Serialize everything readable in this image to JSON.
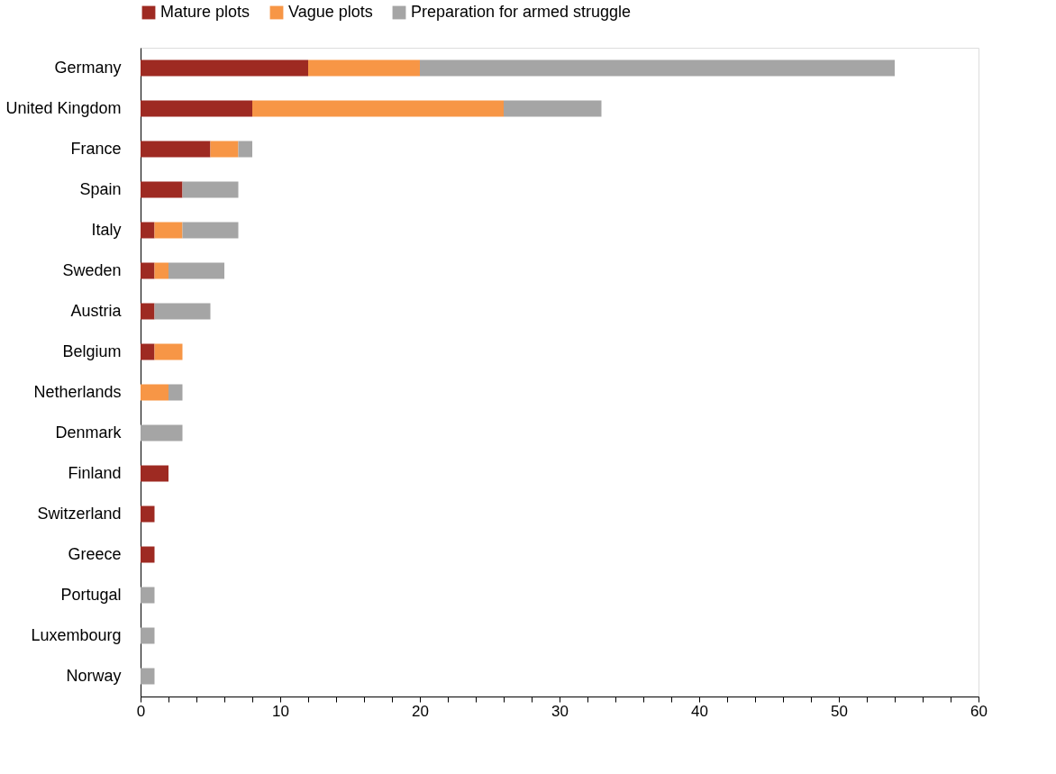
{
  "chart_data": {
    "type": "bar",
    "orientation": "horizontal",
    "stacked": true,
    "legend": "top",
    "grid": false,
    "categories": [
      "Germany",
      "United Kingdom",
      "France",
      "Spain",
      "Italy",
      "Sweden",
      "Austria",
      "Belgium",
      "Netherlands",
      "Denmark",
      "Finland",
      "Switzerland",
      "Greece",
      "Portugal",
      "Luxembourg",
      "Norway"
    ],
    "series": [
      {
        "name": "Mature plots",
        "color": "#9e2a22",
        "values": [
          12,
          8,
          5,
          3,
          1,
          1,
          1,
          1,
          0,
          0,
          2,
          1,
          1,
          0,
          0,
          0
        ]
      },
      {
        "name": "Vague plots",
        "color": "#f79646",
        "values": [
          8,
          18,
          2,
          0,
          2,
          1,
          0,
          2,
          2,
          0,
          0,
          0,
          0,
          0,
          0,
          0
        ]
      },
      {
        "name": "Preparation for armed struggle",
        "color": "#a5a5a5",
        "values": [
          34,
          7,
          1,
          4,
          4,
          4,
          4,
          0,
          1,
          3,
          0,
          0,
          0,
          1,
          1,
          1
        ]
      }
    ],
    "xlim": [
      0,
      60
    ],
    "xticks": [
      0,
      {
        "value": 2,
        "label": null
      },
      {
        "value": 4,
        "label": null
      },
      {
        "value": 6,
        "label": null
      },
      {
        "value": 8,
        "label": null
      },
      10,
      {
        "value": 12,
        "label": null
      },
      {
        "value": 14,
        "label": null
      },
      {
        "value": 16,
        "label": null
      },
      {
        "value": 18,
        "label": null
      },
      20,
      {
        "value": 22,
        "label": null
      },
      {
        "value": 24,
        "label": null
      },
      {
        "value": 26,
        "label": null
      },
      {
        "value": 28,
        "label": null
      },
      30,
      {
        "value": 32,
        "label": null
      },
      {
        "value": 34,
        "label": null
      },
      {
        "value": 36,
        "label": null
      },
      {
        "value": 38,
        "label": null
      },
      40,
      {
        "value": 42,
        "label": null
      },
      {
        "value": 44,
        "label": null
      },
      {
        "value": 46,
        "label": null
      },
      {
        "value": 48,
        "label": null
      },
      50,
      {
        "value": 52,
        "label": null
      },
      {
        "value": 54,
        "label": null
      },
      {
        "value": 56,
        "label": null
      },
      {
        "value": 58,
        "label": null
      },
      60
    ]
  }
}
